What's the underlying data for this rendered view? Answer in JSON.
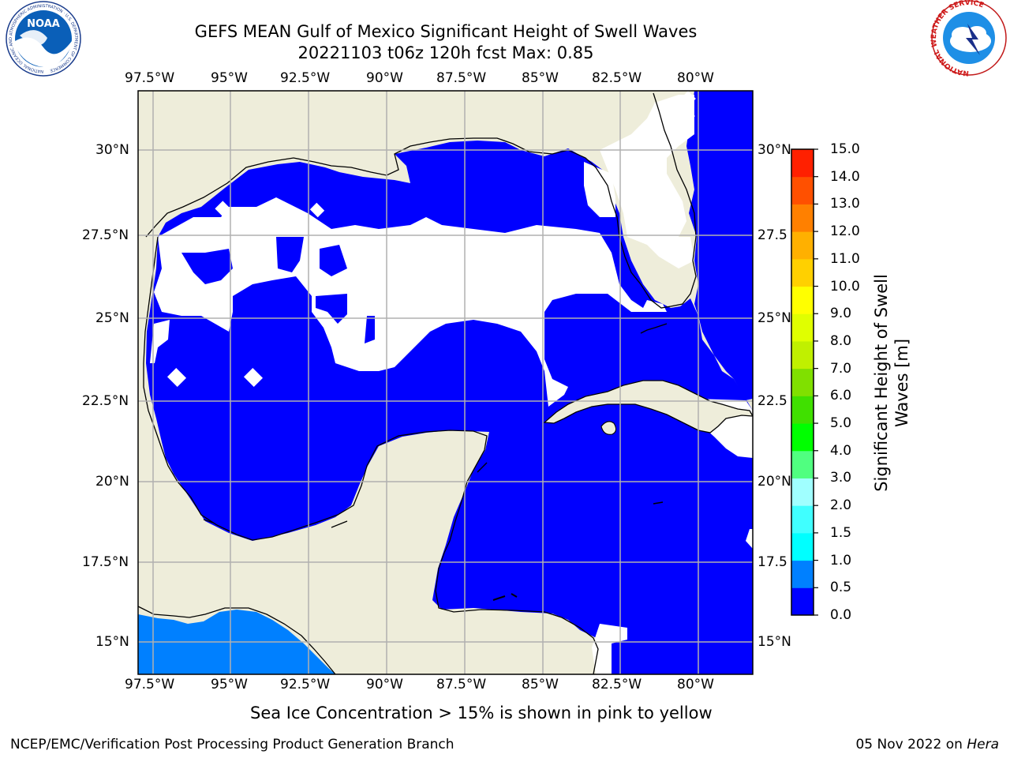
{
  "header": {
    "title_line1": "GEFS MEAN Gulf of Mexico Significant Height of Swell Waves",
    "title_line2": "20221103 t06z 120h fcst   Max: 0.85"
  },
  "logos": {
    "left": "NOAA",
    "left_ring_text": "NATIONAL OCEANIC AND ATMOSPHERIC ADMINISTRATION · U.S. DEPARTMENT OF COMMERCE",
    "right_ring_text": "NATIONAL WEATHER SERVICE"
  },
  "map": {
    "lon_ticks": [
      "97.5°W",
      "95°W",
      "92.5°W",
      "90°W",
      "87.5°W",
      "85°W",
      "82.5°W",
      "80°W"
    ],
    "lat_ticks": [
      "30°N",
      "27.5°N",
      "25°N",
      "22.5°N",
      "20°N",
      "17.5°N",
      "15°N"
    ],
    "lat_ticks_right": [
      "30°N",
      "27.5",
      "25°N",
      "22.5",
      "20°N",
      "17.5",
      "15°N"
    ],
    "extent": {
      "lon_min": -98,
      "lon_max": -78.1,
      "lat_min": 14,
      "lat_max": 31.6
    },
    "colors": {
      "land": "#eeedda",
      "swell_0_0p5": "#0000ff",
      "swell_0p5_1p0": "#0080ff",
      "no_data": "#ffffff",
      "grid": "#b0b0b0",
      "coast": "#000000"
    }
  },
  "colorbar": {
    "label": "Significant Height of Swell Waves [m]",
    "label_line1": "Significant Height of Swell",
    "label_line2": "Waves [m]",
    "ticks": [
      "0.0",
      "0.5",
      "1.0",
      "1.5",
      "2.0",
      "3.0",
      "4.0",
      "5.0",
      "6.0",
      "7.0",
      "8.0",
      "9.0",
      "10.0",
      "11.0",
      "12.0",
      "13.0",
      "14.0",
      "15.0"
    ],
    "colors": [
      "#0000ff",
      "#0080ff",
      "#00ffff",
      "#40ffff",
      "#a0ffff",
      "#50ff80",
      "#00ff00",
      "#40e000",
      "#80e000",
      "#c0f000",
      "#e0ff00",
      "#ffff00",
      "#ffd000",
      "#ffb000",
      "#ff8000",
      "#ff5000",
      "#ff2000"
    ]
  },
  "footer": {
    "note": "Sea Ice Concentration > 15% is shown in pink to yellow",
    "left": "NCEP/EMC/Verification Post Processing Product Generation Branch",
    "right_date": "05 Nov 2022 on",
    "right_host": "Hera"
  }
}
